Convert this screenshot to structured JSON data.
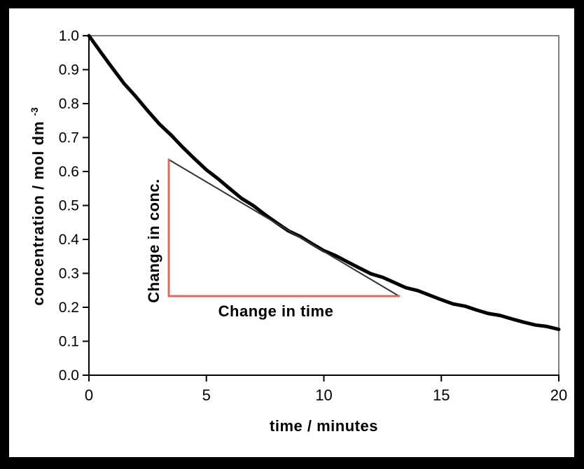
{
  "figure": {
    "outer_border_color": "#000000",
    "background_color": "#ffffff"
  },
  "chart_data": {
    "type": "line",
    "title": "",
    "xlabel": "time / minutes",
    "ylabel": "concentration / mol dm",
    "ylabel_sup": "-3",
    "xlim": [
      0,
      20
    ],
    "ylim": [
      0,
      1
    ],
    "x_ticks": [
      0,
      5,
      10,
      15,
      20
    ],
    "y_ticks": [
      "0.0",
      "0.1",
      "0.2",
      "0.3",
      "0.4",
      "0.5",
      "0.6",
      "0.7",
      "0.8",
      "0.9",
      "1.0"
    ],
    "grid": false,
    "legend": false,
    "plot_border_color": "#808080",
    "axis_color": "#000000",
    "series": [
      {
        "name": "concentration",
        "color": "#000000",
        "x": [
          0,
          0.5,
          1,
          1.5,
          2,
          2.5,
          3,
          3.5,
          4,
          4.5,
          5,
          5.5,
          6,
          6.5,
          7,
          7.5,
          8,
          8.5,
          9,
          9.5,
          10,
          10.5,
          11,
          11.5,
          12,
          12.5,
          13,
          13.5,
          14,
          14.5,
          15,
          15.5,
          16,
          16.5,
          17,
          17.5,
          18,
          18.5,
          19,
          19.5,
          20
        ],
        "y": [
          1.0,
          0.951,
          0.905,
          0.861,
          0.819,
          0.779,
          0.741,
          0.705,
          0.67,
          0.638,
          0.607,
          0.577,
          0.549,
          0.522,
          0.497,
          0.472,
          0.449,
          0.427,
          0.407,
          0.387,
          0.368,
          0.35,
          0.333,
          0.317,
          0.301,
          0.287,
          0.273,
          0.259,
          0.247,
          0.235,
          0.223,
          0.212,
          0.202,
          0.192,
          0.183,
          0.174,
          0.165,
          0.157,
          0.15,
          0.142,
          0.135
        ]
      }
    ],
    "tangent": {
      "color": "#333333",
      "x1": 3.4,
      "y1": 0.635,
      "x2": 13.2,
      "y2": 0.233
    },
    "gradient_triangle": {
      "color": "#D96C5B",
      "vertical_label": "Change in conc.",
      "horizontal_label": "Change in time"
    }
  }
}
